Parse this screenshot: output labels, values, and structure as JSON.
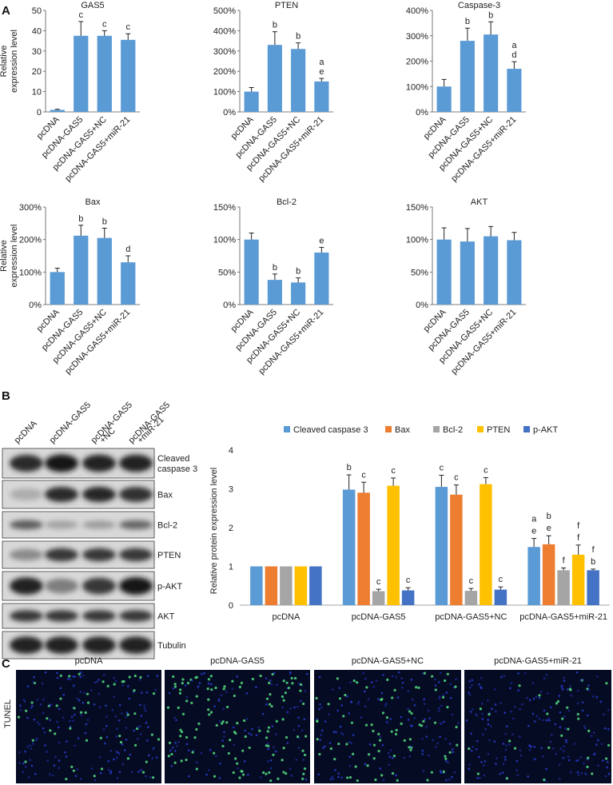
{
  "panel_labels": {
    "a": "A",
    "b": "B",
    "c": "C"
  },
  "chart_data": [
    {
      "type": "bar",
      "title": "GAS5",
      "ylabel": "Relative expression level",
      "categories": [
        "pcDNA",
        "pcDNA-GAS5",
        "pcDNA-GAS5+NC",
        "pcDNA-GAS5+miR-21"
      ],
      "values": [
        1,
        37.5,
        37.5,
        35.5
      ],
      "errors": [
        0.3,
        7,
        2.5,
        3
      ],
      "annotations": [
        "",
        "c",
        "c",
        "c"
      ],
      "ylim": [
        0,
        50
      ],
      "yticks": [
        0,
        10,
        20,
        30,
        40,
        50
      ],
      "ytick_labels": [
        "0",
        "10",
        "20",
        "30",
        "40",
        "50"
      ],
      "color": "#5b9bd5"
    },
    {
      "type": "bar",
      "title": "PTEN",
      "ylabel": "",
      "categories": [
        "pcDNA",
        "pcDNA-GAS5",
        "pcDNA-GAS5+NC",
        "pcDNA-GAS5+miR-21"
      ],
      "values": [
        100,
        330,
        310,
        150
      ],
      "errors": [
        20,
        65,
        30,
        15
      ],
      "annotations": [
        "",
        "b",
        "b",
        "a\ne"
      ],
      "ylim": [
        0,
        500
      ],
      "yticks": [
        0,
        100,
        200,
        300,
        400,
        500
      ],
      "ytick_labels": [
        "0%",
        "100%",
        "200%",
        "300%",
        "400%",
        "500%"
      ],
      "color": "#5b9bd5"
    },
    {
      "type": "bar",
      "title": "Caspase-3",
      "ylabel": "",
      "categories": [
        "pcDNA",
        "pcDNA-GAS5",
        "pcDNA-GAS5+NC",
        "pcDNA-GAS5+miR-21"
      ],
      "values": [
        100,
        280,
        305,
        170
      ],
      "errors": [
        28,
        50,
        50,
        28
      ],
      "annotations": [
        "",
        "b",
        "b",
        "a\nd"
      ],
      "ylim": [
        0,
        400
      ],
      "yticks": [
        0,
        100,
        200,
        300,
        400
      ],
      "ytick_labels": [
        "0%",
        "100%",
        "200%",
        "300%",
        "400%"
      ],
      "color": "#5b9bd5"
    },
    {
      "type": "bar",
      "title": "Bax",
      "ylabel": "Relative expression level",
      "categories": [
        "pcDNA",
        "pcDNA-GAS5",
        "pcDNA-GAS5+NC",
        "pcDNA-GAS5+miR-21"
      ],
      "values": [
        100,
        212,
        205,
        130
      ],
      "errors": [
        12,
        32,
        30,
        20
      ],
      "annotations": [
        "",
        "b",
        "b",
        "d"
      ],
      "ylim": [
        0,
        300
      ],
      "yticks": [
        0,
        100,
        200,
        300
      ],
      "ytick_labels": [
        "0%",
        "100%",
        "200%",
        "300%"
      ],
      "color": "#5b9bd5"
    },
    {
      "type": "bar",
      "title": "Bcl-2",
      "ylabel": "",
      "categories": [
        "pcDNA",
        "pcDNA-GAS5",
        "pcDNA-GAS5+NC",
        "pcDNA-GAS5+miR-21"
      ],
      "values": [
        100,
        38,
        34,
        80
      ],
      "errors": [
        10,
        9,
        7,
        8
      ],
      "annotations": [
        "",
        "b",
        "b",
        "e"
      ],
      "ylim": [
        0,
        150
      ],
      "yticks": [
        0,
        50,
        100,
        150
      ],
      "ytick_labels": [
        "0%",
        "50%",
        "100%",
        "150%"
      ],
      "color": "#5b9bd5"
    },
    {
      "type": "bar",
      "title": "AKT",
      "ylabel": "",
      "categories": [
        "pcDNA",
        "pcDNA-GAS5",
        "pcDNA-GAS5+NC",
        "pcDNA-GAS5+miR-21"
      ],
      "values": [
        100,
        97,
        105,
        99
      ],
      "errors": [
        18,
        20,
        15,
        12
      ],
      "annotations": [
        "",
        "",
        "",
        ""
      ],
      "ylim": [
        0,
        150
      ],
      "yticks": [
        0,
        50,
        100,
        150
      ],
      "ytick_labels": [
        "0%",
        "50%",
        "100%",
        "150%"
      ],
      "color": "#5b9bd5"
    },
    {
      "type": "bar",
      "title": "",
      "ylabel": "Relative protein expression level",
      "categories": [
        "pcDNA",
        "pcDNA-GAS5",
        "pcDNA-GAS5+NC",
        "pcDNA-GAS5+miR-21"
      ],
      "ylim": [
        0,
        4
      ],
      "yticks": [
        0,
        1,
        2,
        3,
        4
      ],
      "ytick_labels": [
        "0",
        "1",
        "2",
        "3",
        "4"
      ],
      "legend_position": "top",
      "series": [
        {
          "name": "Cleaved caspase 3",
          "color": "#5b9bd5",
          "values": [
            1,
            2.98,
            3.05,
            1.5
          ],
          "errors": [
            0,
            0.38,
            0.3,
            0.22
          ],
          "annotations": [
            "",
            "b",
            "c",
            "a\ne"
          ]
        },
        {
          "name": "Bax",
          "color": "#ed7d31",
          "values": [
            1,
            2.9,
            2.85,
            1.57
          ],
          "errors": [
            0,
            0.27,
            0.25,
            0.22
          ],
          "annotations": [
            "",
            "c",
            "c",
            "b\ne"
          ]
        },
        {
          "name": "Bcl-2",
          "color": "#a5a5a5",
          "values": [
            1,
            0.36,
            0.37,
            0.9
          ],
          "errors": [
            0,
            0.05,
            0.06,
            0.06
          ],
          "annotations": [
            "",
            "c",
            "c",
            "f"
          ]
        },
        {
          "name": "PTEN",
          "color": "#ffc000",
          "values": [
            1,
            3.08,
            3.12,
            1.3
          ],
          "errors": [
            0,
            0.2,
            0.17,
            0.25
          ],
          "annotations": [
            "",
            "c",
            "c",
            "f\nf"
          ]
        },
        {
          "name": "p-AKT",
          "color": "#4472c4",
          "values": [
            1,
            0.38,
            0.4,
            0.9
          ],
          "errors": [
            0,
            0.07,
            0.07,
            0.03
          ],
          "annotations": [
            "",
            "c",
            "c",
            "f\nb"
          ]
        }
      ]
    }
  ],
  "western_blot": {
    "lanes": [
      "pcDNA",
      "pcDNA-GAS5",
      "pcDNA-GAS5\n+NC",
      "pcDNA-GAS5\n+miR-21"
    ],
    "bands": [
      "Cleaved\ncaspase 3",
      "Bax",
      "Bcl-2",
      "PTEN",
      "p-AKT",
      "AKT",
      "Tubulin"
    ]
  },
  "tunel": {
    "row_label": "TUNEL",
    "images": [
      "pcDNA",
      "pcDNA-GAS5",
      "pcDNA-GAS5+NC",
      "pcDNA-GAS5+miR-21"
    ]
  }
}
